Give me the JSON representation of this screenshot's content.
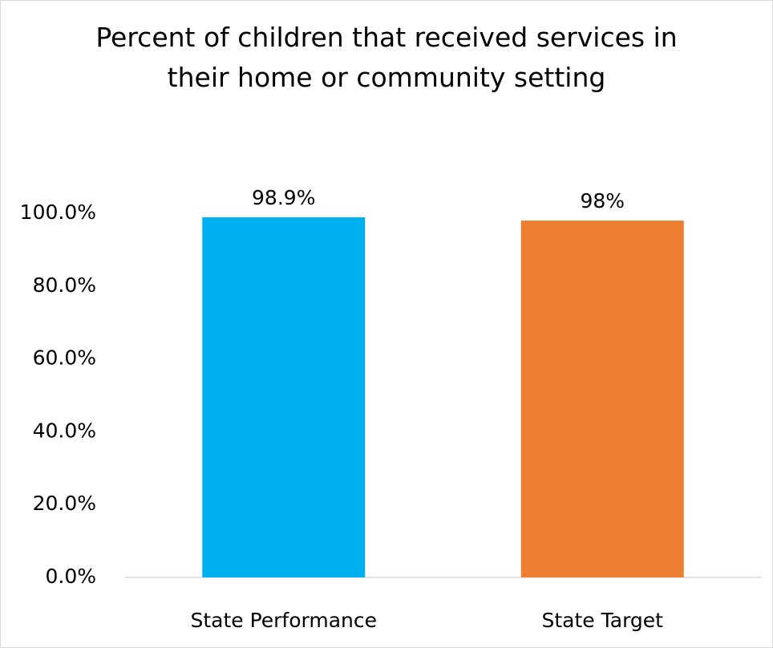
{
  "chart_data": {
    "type": "bar",
    "title_lines": [
      "Percent of children that received services in",
      "their home or community setting"
    ],
    "categories": [
      "State Performance",
      "State Target"
    ],
    "values": [
      98.9,
      98
    ],
    "data_labels": [
      "98.9%",
      "98%"
    ],
    "bar_colors": [
      "#00B0F0",
      "#ED7D31"
    ],
    "xlabel": "",
    "ylabel": "",
    "ylim": [
      0,
      100
    ],
    "yticks": [
      0,
      20,
      40,
      60,
      80,
      100
    ],
    "ytick_labels": [
      "0.0%",
      "20.0%",
      "40.0%",
      "60.0%",
      "80.0%",
      "100.0%"
    ],
    "grid": false,
    "legend": "none"
  }
}
